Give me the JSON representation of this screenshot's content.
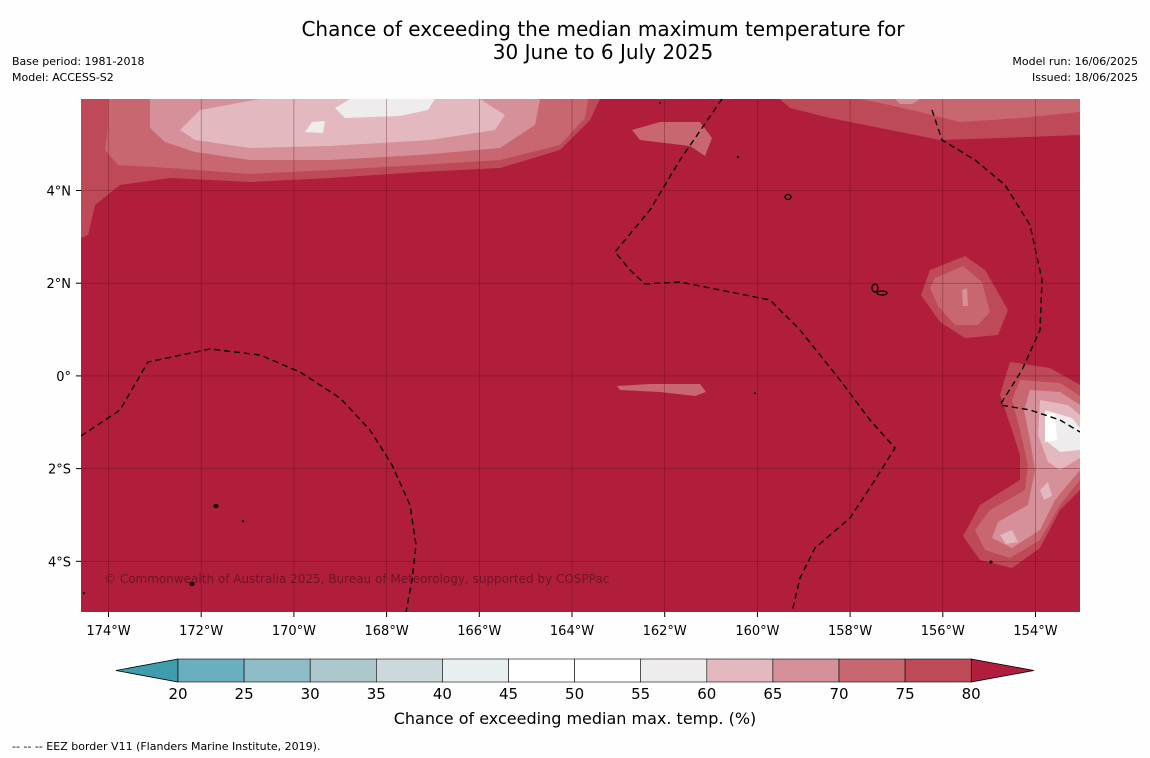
{
  "title_line1": "Chance of exceeding the median maximum temperature for",
  "title_line2": "30 June to 6 July 2025",
  "base_period": "Base period: 1981-2018",
  "model": "Model: ACCESS-S2",
  "model_run": "Model run: 16/06/2025",
  "issued": "Issued: 18/06/2025",
  "copyright": "© Commonwealth of Australia 2025, Bureau of Meteorology, supported by COSPPac",
  "colorbar_label": "Chance of exceeding median max. temp. (%)",
  "footer": "--  --  -- EEZ border V11 (Flanders Marine Institute, 2019).",
  "chart_data": {
    "type": "heatmap",
    "x_ticks": [
      "174°W",
      "172°W",
      "170°W",
      "168°W",
      "166°W",
      "164°W",
      "162°W",
      "160°W",
      "158°W",
      "156°W",
      "154°W"
    ],
    "y_ticks": [
      "4°N",
      "2°N",
      "0°",
      "2°S",
      "4°S"
    ],
    "xlim": [
      "174.6°W",
      "153.0°W"
    ],
    "ylim": [
      "5.1°S",
      "6.0°N"
    ],
    "grid": true,
    "colorbar": {
      "ticks": [
        20,
        25,
        30,
        35,
        40,
        45,
        50,
        55,
        60,
        65,
        70,
        75,
        80
      ],
      "colors": [
        "#3d9dad",
        "#6aafbf",
        "#8dbcc6",
        "#adc8cd",
        "#cbd9dc",
        "#e8eff1",
        "#ffffff",
        "#ffffff",
        "#eeeced",
        "#e3b8be",
        "#d6909a",
        "#c8676f",
        "#bf4a57",
        "#b01e3b"
      ],
      "extend": "both"
    },
    "dominant_category": "80",
    "dominant_color": "#b01e3b"
  }
}
